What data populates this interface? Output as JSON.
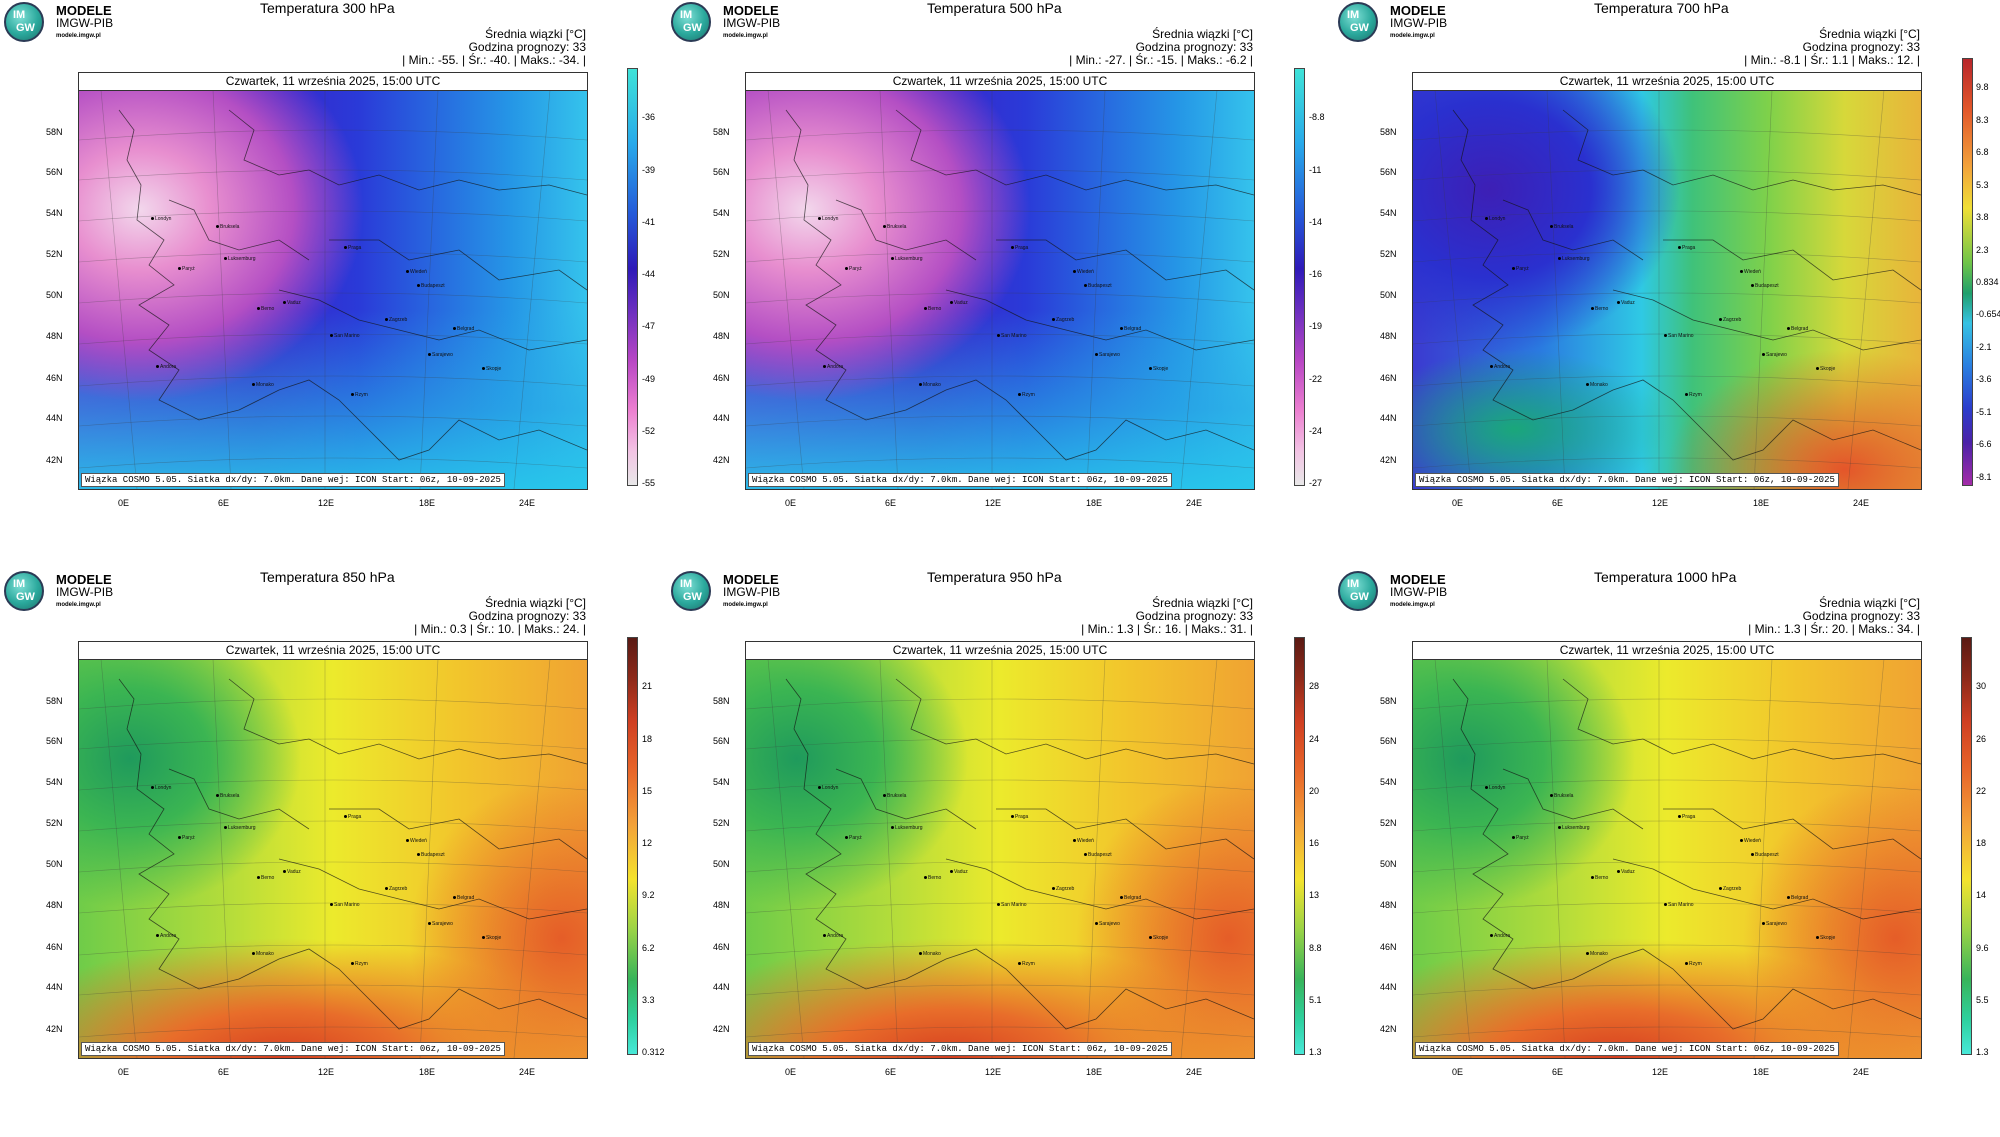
{
  "brand": {
    "name": "MODELE",
    "org": "IMGW-PIB",
    "site": "modele.imgw.pl",
    "logo_top": "IM",
    "logo_bottom": "GW"
  },
  "common": {
    "info_line1": "Średnia wiązki [°C]",
    "info_line2": "Godzina prognozy: 33",
    "date": "Czwartek, 11 września 2025, 15:00 UTC",
    "credit": "Wiązka COSMO 5.05. Siatka dx/dy: 7.0km. Dane wej: ICON Start: 06z, 10-09-2025",
    "lat_labels": [
      "58N",
      "56N",
      "54N",
      "52N",
      "50N",
      "48N",
      "46N",
      "44N",
      "42N"
    ],
    "lon_labels": [
      "0E",
      "6E",
      "12E",
      "18E",
      "24E"
    ],
    "cities": [
      "Londyn",
      "Bruksela",
      "Paryż",
      "Luksemburg",
      "Praga",
      "Wiedeń",
      "Budapeszt",
      "Berno",
      "Vaduz",
      "Zagrzeb",
      "Belgrad",
      "San Marino",
      "Sarajewo",
      "Andora",
      "Monako",
      "Skopje",
      "Rzym"
    ]
  },
  "panels": [
    {
      "title": "Temperatura 300 hPa",
      "stats": "| Min.:    -55. | Śr.:   -40. | Maks.:    -34. |",
      "cbar": [
        "-36",
        "-39",
        "-41",
        "-44",
        "-47",
        "-49",
        "-52",
        "-55"
      ],
      "scheme": "cold_upper"
    },
    {
      "title": "Temperatura 500 hPa",
      "stats": "| Min.:    -27. | Śr.:   -15. | Maks.:    -6.2 |",
      "cbar": [
        "-8.8",
        "-11",
        "-14",
        "-16",
        "-19",
        "-22",
        "-24",
        "-27"
      ],
      "scheme": "cold_upper"
    },
    {
      "title": "Temperatura 700 hPa",
      "stats": "| Min.:    -8.1 | Śr.:     1.1 | Maks.:     12. |",
      "cbar": [
        "9.8",
        "8.3",
        "6.8",
        "5.3",
        "3.8",
        "2.3",
        "0.834",
        "-0.654",
        "-2.1",
        "-3.6",
        "-5.1",
        "-6.6",
        "-8.1"
      ],
      "scheme": "mixed"
    },
    {
      "title": "Temperatura 850 hPa",
      "stats": "| Min.:     0.3 | Śr.:    10. | Maks.:     24. |",
      "cbar": [
        "21",
        "18",
        "15",
        "12",
        "9.2",
        "6.2",
        "3.3",
        "0.312"
      ],
      "scheme": "warm"
    },
    {
      "title": "Temperatura 950 hPa",
      "stats": "| Min.:     1.3 | Śr.:    16. | Maks.:     31. |",
      "cbar": [
        "28",
        "24",
        "20",
        "16",
        "13",
        "8.8",
        "5.1",
        "1.3"
      ],
      "scheme": "warm"
    },
    {
      "title": "Temperatura 1000 hPa",
      "stats": "| Min.:     1.3 | Śr.:    20. | Maks.:     34. |",
      "cbar": [
        "30",
        "26",
        "22",
        "18",
        "14",
        "9.6",
        "5.5",
        "1.3"
      ],
      "scheme": "warm"
    }
  ]
}
